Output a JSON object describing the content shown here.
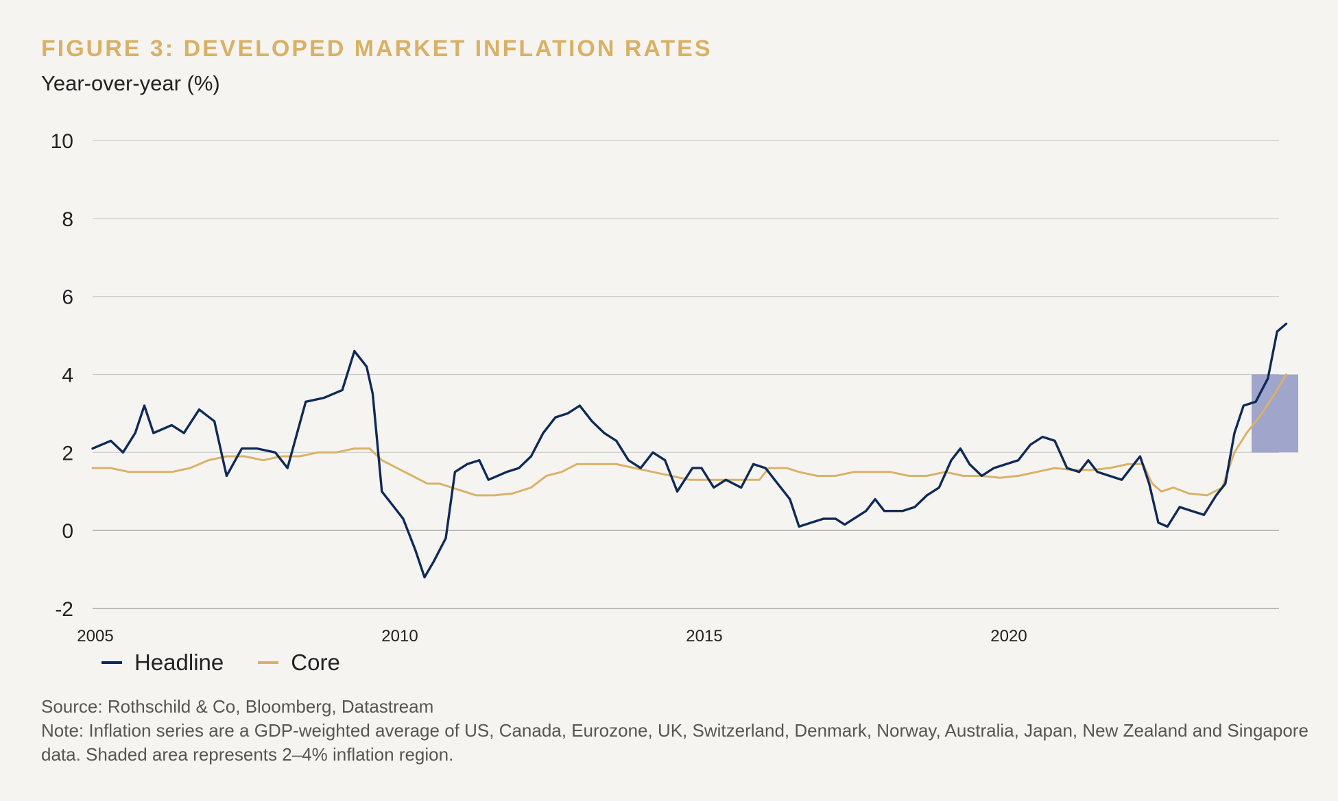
{
  "colors": {
    "headline": "#0e2a57",
    "core": "#d9b26a",
    "band": "#8f97c4",
    "grid": "#c9c9c9",
    "title": "#d8b165"
  },
  "footer": {
    "source": "Source: Rothschild & Co, Bloomberg, Datastream",
    "note_line1": "Note: Inflation series are a GDP-weighted average of US, Canada, Eurozone, UK, Switzerland, Denmark, Norway, Australia, Japan, New Zealand and Singapore",
    "note_line2": "data. Shaded area represents 2–4% inflation region."
  },
  "chart_data": {
    "type": "line",
    "title": "FIGURE 3: DEVELOPED MARKET INFLATION RATES",
    "ylabel": "Year-over-year (%)",
    "xlabel": "",
    "xlim": [
      2005,
      2024.6
    ],
    "ylim": [
      -2,
      10
    ],
    "yticks": [
      10,
      8,
      6,
      4,
      2,
      0,
      -2
    ],
    "xticks": [
      2005,
      2010,
      2015,
      2020
    ],
    "grid": true,
    "legend": "bottom-left",
    "shaded_band": {
      "x": [
        2024.0,
        2024.75
      ],
      "y": [
        2,
        4
      ],
      "label": "2–4% inflation region"
    },
    "series": [
      {
        "name": "Headline",
        "points": [
          [
            2005.0,
            2.1
          ],
          [
            2005.3,
            2.3
          ],
          [
            2005.5,
            2.0
          ],
          [
            2005.7,
            2.5
          ],
          [
            2005.85,
            3.2
          ],
          [
            2006.0,
            2.5
          ],
          [
            2006.3,
            2.7
          ],
          [
            2006.5,
            2.5
          ],
          [
            2006.75,
            3.1
          ],
          [
            2007.0,
            2.8
          ],
          [
            2007.2,
            1.4
          ],
          [
            2007.45,
            2.1
          ],
          [
            2007.7,
            2.1
          ],
          [
            2008.0,
            2.0
          ],
          [
            2008.2,
            1.6
          ],
          [
            2008.5,
            3.3
          ],
          [
            2008.8,
            3.4
          ],
          [
            2009.1,
            3.6
          ],
          [
            2009.3,
            4.6
          ],
          [
            2009.5,
            4.2
          ],
          [
            2009.6,
            3.5
          ],
          [
            2009.75,
            1.0
          ],
          [
            2009.95,
            0.6
          ],
          [
            2010.1,
            0.3
          ],
          [
            2010.3,
            -0.5
          ],
          [
            2010.45,
            -1.2
          ],
          [
            2010.6,
            -0.8
          ],
          [
            2010.8,
            -0.2
          ],
          [
            2010.95,
            1.5
          ],
          [
            2011.15,
            1.7
          ],
          [
            2011.35,
            1.8
          ],
          [
            2011.5,
            1.3
          ],
          [
            2011.8,
            1.5
          ],
          [
            2012.0,
            1.6
          ],
          [
            2012.2,
            1.9
          ],
          [
            2012.4,
            2.5
          ],
          [
            2012.6,
            2.9
          ],
          [
            2012.8,
            3.0
          ],
          [
            2013.0,
            3.2
          ],
          [
            2013.2,
            2.8
          ],
          [
            2013.4,
            2.5
          ],
          [
            2013.6,
            2.3
          ],
          [
            2013.8,
            1.8
          ],
          [
            2014.0,
            1.6
          ],
          [
            2014.2,
            2.0
          ],
          [
            2014.4,
            1.8
          ],
          [
            2014.6,
            1.0
          ],
          [
            2014.85,
            1.6
          ],
          [
            2015.0,
            1.6
          ],
          [
            2015.2,
            1.1
          ],
          [
            2015.4,
            1.3
          ],
          [
            2015.65,
            1.1
          ],
          [
            2015.85,
            1.7
          ],
          [
            2016.05,
            1.6
          ],
          [
            2016.25,
            1.2
          ],
          [
            2016.45,
            0.8
          ],
          [
            2016.6,
            0.1
          ],
          [
            2016.8,
            0.2
          ],
          [
            2017.0,
            0.3
          ],
          [
            2017.2,
            0.3
          ],
          [
            2017.35,
            0.15
          ],
          [
            2017.5,
            0.3
          ],
          [
            2017.7,
            0.5
          ],
          [
            2017.85,
            0.8
          ],
          [
            2018.0,
            0.5
          ],
          [
            2018.3,
            0.5
          ],
          [
            2018.5,
            0.6
          ],
          [
            2018.7,
            0.9
          ],
          [
            2018.9,
            1.1
          ],
          [
            2019.1,
            1.8
          ],
          [
            2019.25,
            2.1
          ],
          [
            2019.4,
            1.7
          ],
          [
            2019.6,
            1.4
          ],
          [
            2019.8,
            1.6
          ],
          [
            2020.0,
            1.7
          ],
          [
            2020.2,
            1.8
          ],
          [
            2020.4,
            2.2
          ],
          [
            2020.6,
            2.4
          ],
          [
            2020.8,
            2.3
          ],
          [
            2021.0,
            1.6
          ],
          [
            2021.2,
            1.5
          ],
          [
            2021.35,
            1.8
          ],
          [
            2021.5,
            1.5
          ],
          [
            2021.7,
            1.4
          ],
          [
            2021.9,
            1.3
          ],
          [
            2022.05,
            1.6
          ],
          [
            2022.2,
            1.9
          ],
          [
            2022.35,
            1.2
          ],
          [
            2022.5,
            0.2
          ],
          [
            2022.65,
            0.1
          ],
          [
            2022.85,
            0.6
          ],
          [
            2023.05,
            0.5
          ],
          [
            2023.25,
            0.4
          ],
          [
            2023.45,
            0.9
          ],
          [
            2023.6,
            1.2
          ],
          [
            2023.75,
            2.5
          ],
          [
            2023.9,
            3.2
          ],
          [
            2024.1,
            3.3
          ],
          [
            2024.3,
            3.9
          ],
          [
            2024.45,
            5.1
          ],
          [
            2024.6,
            5.3
          ]
        ]
      },
      {
        "name": "Core",
        "points": [
          [
            2005.0,
            1.6
          ],
          [
            2005.3,
            1.6
          ],
          [
            2005.6,
            1.5
          ],
          [
            2006.0,
            1.5
          ],
          [
            2006.3,
            1.5
          ],
          [
            2006.6,
            1.6
          ],
          [
            2006.9,
            1.8
          ],
          [
            2007.2,
            1.9
          ],
          [
            2007.5,
            1.9
          ],
          [
            2007.8,
            1.8
          ],
          [
            2008.1,
            1.9
          ],
          [
            2008.4,
            1.9
          ],
          [
            2008.7,
            2.0
          ],
          [
            2009.0,
            2.0
          ],
          [
            2009.3,
            2.1
          ],
          [
            2009.55,
            2.1
          ],
          [
            2009.75,
            1.8
          ],
          [
            2010.0,
            1.6
          ],
          [
            2010.25,
            1.4
          ],
          [
            2010.5,
            1.2
          ],
          [
            2010.7,
            1.2
          ],
          [
            2010.9,
            1.1
          ],
          [
            2011.1,
            1.0
          ],
          [
            2011.3,
            0.9
          ],
          [
            2011.6,
            0.9
          ],
          [
            2011.9,
            0.95
          ],
          [
            2012.2,
            1.1
          ],
          [
            2012.45,
            1.4
          ],
          [
            2012.7,
            1.5
          ],
          [
            2012.95,
            1.7
          ],
          [
            2013.3,
            1.7
          ],
          [
            2013.6,
            1.7
          ],
          [
            2013.9,
            1.6
          ],
          [
            2014.2,
            1.5
          ],
          [
            2014.5,
            1.4
          ],
          [
            2014.8,
            1.3
          ],
          [
            2015.1,
            1.3
          ],
          [
            2015.4,
            1.3
          ],
          [
            2015.7,
            1.3
          ],
          [
            2015.95,
            1.3
          ],
          [
            2016.1,
            1.6
          ],
          [
            2016.4,
            1.6
          ],
          [
            2016.6,
            1.5
          ],
          [
            2016.9,
            1.4
          ],
          [
            2017.2,
            1.4
          ],
          [
            2017.5,
            1.5
          ],
          [
            2017.8,
            1.5
          ],
          [
            2018.1,
            1.5
          ],
          [
            2018.4,
            1.4
          ],
          [
            2018.7,
            1.4
          ],
          [
            2019.0,
            1.5
          ],
          [
            2019.3,
            1.4
          ],
          [
            2019.6,
            1.4
          ],
          [
            2019.9,
            1.35
          ],
          [
            2020.2,
            1.4
          ],
          [
            2020.5,
            1.5
          ],
          [
            2020.8,
            1.6
          ],
          [
            2021.1,
            1.55
          ],
          [
            2021.4,
            1.55
          ],
          [
            2021.7,
            1.6
          ],
          [
            2022.0,
            1.7
          ],
          [
            2022.25,
            1.7
          ],
          [
            2022.4,
            1.2
          ],
          [
            2022.55,
            1.0
          ],
          [
            2022.75,
            1.1
          ],
          [
            2023.0,
            0.95
          ],
          [
            2023.3,
            0.9
          ],
          [
            2023.55,
            1.1
          ],
          [
            2023.75,
            2.0
          ],
          [
            2023.95,
            2.5
          ],
          [
            2024.2,
            3.0
          ],
          [
            2024.45,
            3.6
          ],
          [
            2024.6,
            4.0
          ]
        ]
      }
    ]
  }
}
